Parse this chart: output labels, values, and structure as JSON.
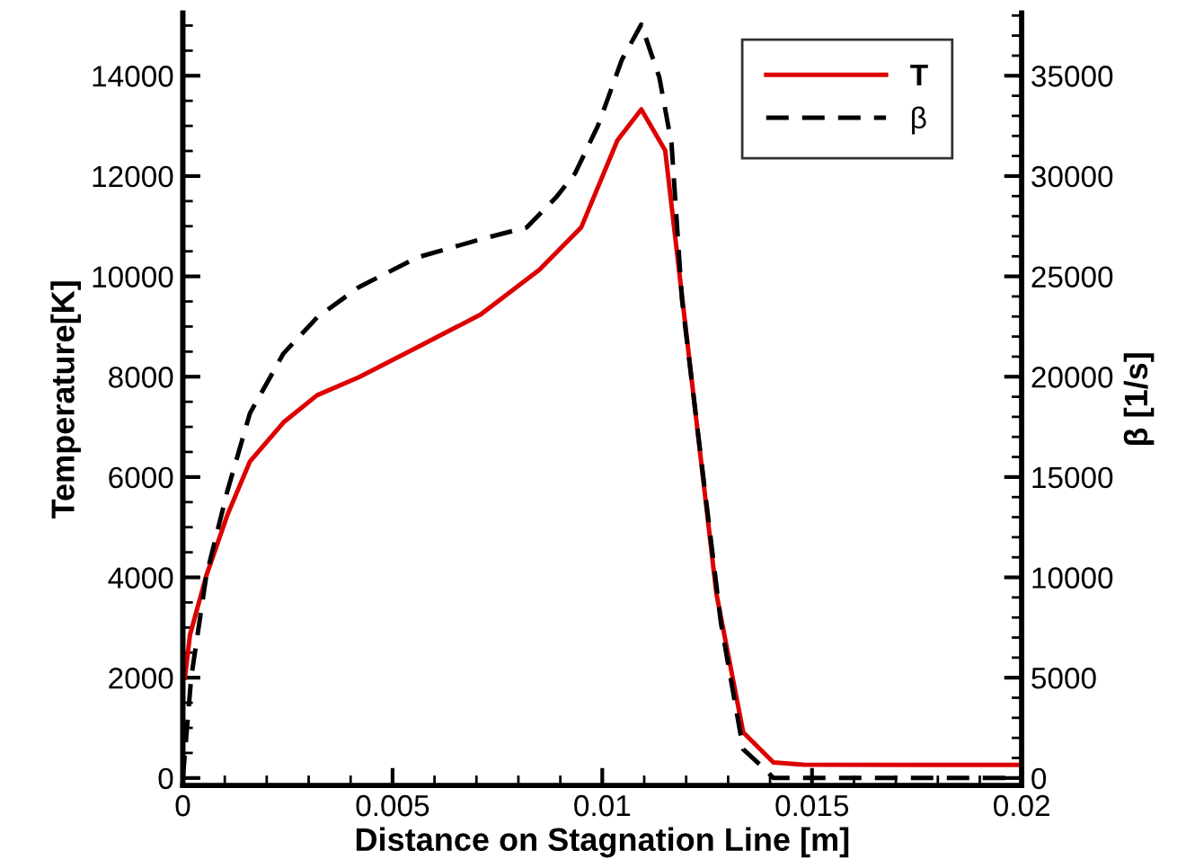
{
  "chart_data": {
    "type": "line",
    "xlabel": "Distance on Stagnation Line [m]",
    "ylabel": "Temperature[K]",
    "y2label": "β [1/s]",
    "xlim": [
      0,
      0.02
    ],
    "xticks": [
      0,
      0.005,
      0.01,
      0.015,
      0.02
    ],
    "ylim": [
      -150,
      15250
    ],
    "yticks": [
      0,
      2000,
      4000,
      6000,
      8000,
      10000,
      12000,
      14000
    ],
    "y2lim": [
      -375,
      38125
    ],
    "y2ticks": [
      0,
      5000,
      10000,
      15000,
      20000,
      25000,
      30000,
      35000
    ],
    "legend": "top right",
    "grid": false,
    "marker": "none",
    "series": [
      {
        "name": "T",
        "color": "#dd0000",
        "line_style": "solid",
        "x": [
          5e-05,
          0.00017,
          0.00056,
          0.00106,
          0.0016,
          0.0024,
          0.0032,
          0.0042,
          0.0056,
          0.0071,
          0.0085,
          0.0095,
          0.01036,
          0.01093,
          0.0115,
          0.01272,
          0.01336,
          0.01408,
          0.0148,
          0.02
        ],
        "values": [
          2000,
          2850,
          4035,
          5240,
          6310,
          7090,
          7630,
          7990,
          8590,
          9240,
          10130,
          10980,
          12710,
          13330,
          12510,
          3680,
          910,
          312,
          265,
          260
        ]
      },
      {
        "name": "β",
        "color": "#000000",
        "line_style": "dashed",
        "axis": "y2",
        "x": [
          0,
          0.0002,
          0.00056,
          0.00106,
          0.0016,
          0.0024,
          0.0032,
          0.0042,
          0.0056,
          0.0071,
          0.0082,
          0.0089,
          0.00935,
          0.0099,
          0.01047,
          0.01093,
          0.01136,
          0.01165,
          0.0119,
          0.0125,
          0.01283,
          0.01336,
          0.0139,
          0.01408,
          0.02
        ],
        "values": [
          0,
          5020,
          10090,
          14290,
          18180,
          21160,
          22950,
          24470,
          25950,
          26850,
          27440,
          28940,
          30130,
          32520,
          35810,
          37550,
          34920,
          31630,
          23850,
          13400,
          7710,
          1430,
          400,
          0,
          0
        ]
      }
    ]
  }
}
